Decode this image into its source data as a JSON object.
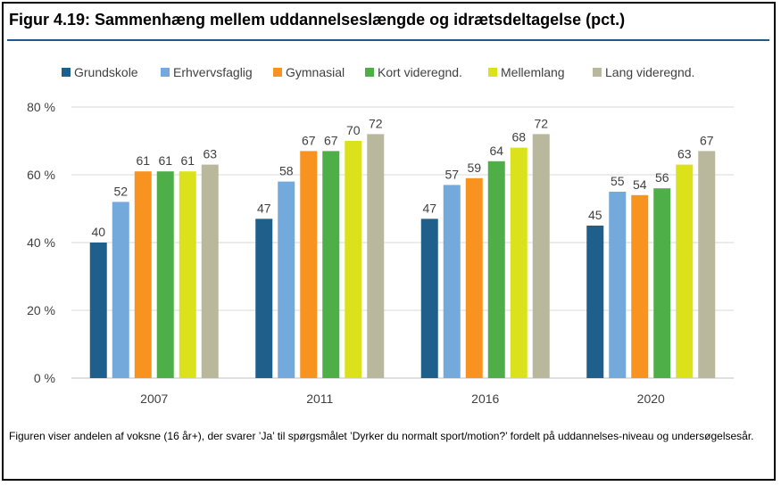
{
  "figure": {
    "title": "Figur 4.19: Sammenhæng mellem uddannelseslængde og idrætsdeltagelse (pct.)",
    "caption": "Figuren viser andelen af voksne (16 år+), der svarer ’Ja’ til spørgsmålet ’Dyrker du normalt sport/motion?’ fordelt på uddannelses-niveau og undersøgelsesår."
  },
  "chart_data": {
    "type": "bar",
    "title": "Sammenhæng mellem uddannelseslængde og idrætsdeltagelse (pct.)",
    "xlabel": "",
    "ylabel": "",
    "categories": [
      "2007",
      "2011",
      "2016",
      "2020"
    ],
    "ylim": [
      0,
      80
    ],
    "yticks": [
      0,
      20,
      40,
      60,
      80
    ],
    "ytick_labels": [
      "0 %",
      "20 %",
      "40 %",
      "60 %",
      "80 %"
    ],
    "grid": true,
    "legend_position": "top",
    "series": [
      {
        "name": "Grundskole",
        "color": "#1f5f8b",
        "values": [
          40,
          47,
          47,
          45
        ]
      },
      {
        "name": "Erhvervsfaglig",
        "color": "#74a9dc",
        "values": [
          52,
          58,
          57,
          55
        ]
      },
      {
        "name": "Gymnasial",
        "color": "#f7931e",
        "values": [
          61,
          67,
          59,
          54
        ]
      },
      {
        "name": "Kort videregnd.",
        "color": "#4eae47",
        "values": [
          61,
          67,
          64,
          56
        ]
      },
      {
        "name": "Mellemlang",
        "color": "#dbe21b",
        "values": [
          61,
          70,
          68,
          63
        ]
      },
      {
        "name": "Lang videregnd.",
        "color": "#b9b79c",
        "values": [
          63,
          72,
          72,
          67
        ]
      }
    ]
  }
}
